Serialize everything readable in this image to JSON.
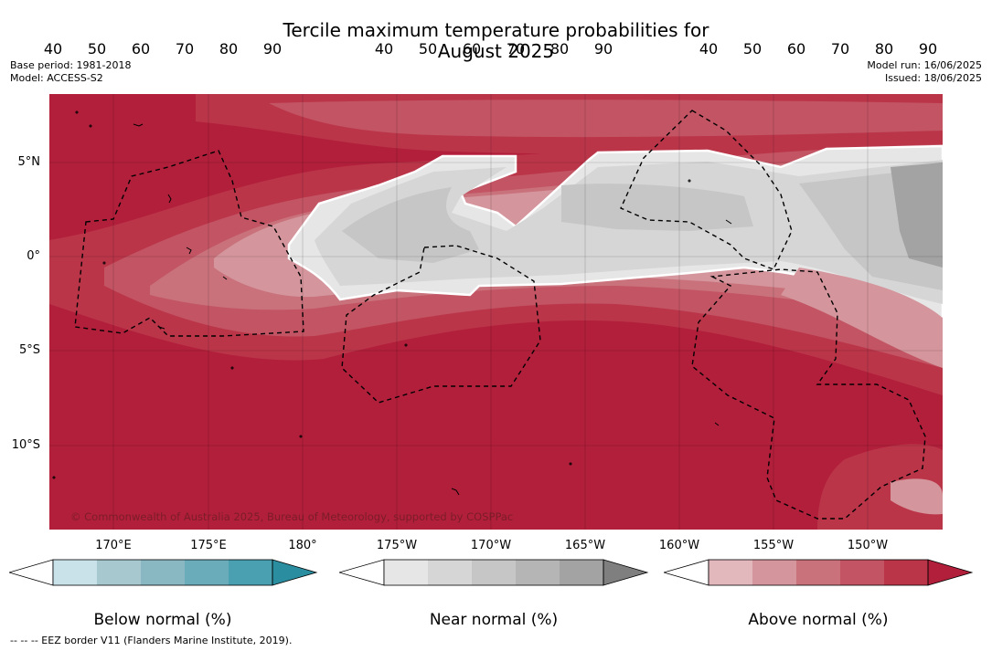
{
  "title_line1": "Tercile maximum temperature probabilities for",
  "title_line2": "August 2025",
  "base_period": "Base period: 1981-2018",
  "model": "Model: ACCESS-S2",
  "model_run": "Model run: 16/06/2025",
  "issued": "Issued: 18/06/2025",
  "credit": "© Commonwealth of Australia 2025, Bureau of Meteorology, supported by COSPPac",
  "footnote": "--  --  -- EEZ border V11 (Flanders Marine Institute, 2019).",
  "lat_labels": [
    "5°N",
    "0°",
    "5°S",
    "10°S"
  ],
  "lon_labels": [
    "170°E",
    "175°E",
    "180°",
    "175°W",
    "170°W",
    "165°W",
    "160°W",
    "155°W",
    "150°W"
  ],
  "colorbars": [
    {
      "name": "below",
      "label": "Below normal (%)",
      "ticks": [
        "40",
        "50",
        "60",
        "70",
        "80",
        "90"
      ],
      "colors": [
        "#ffffff",
        "#c9e1e8",
        "#a7c8cf",
        "#89b7c2",
        "#6aacb9",
        "#4aa0b0",
        "#2b8ea0"
      ]
    },
    {
      "name": "near",
      "label": "Near normal (%)",
      "ticks": [
        "40",
        "50",
        "60",
        "70",
        "80",
        "90"
      ],
      "colors": [
        "#ffffff",
        "#e6e6e6",
        "#d6d6d6",
        "#c6c6c6",
        "#b5b5b5",
        "#a3a3a3",
        "#7f7f7f"
      ]
    },
    {
      "name": "above",
      "label": "Above normal (%)",
      "ticks": [
        "40",
        "50",
        "60",
        "70",
        "80",
        "90"
      ],
      "colors": [
        "#ffffff",
        "#e2b8bd",
        "#d4959c",
        "#c9727c",
        "#c25463",
        "#bb3549",
        "#b21f3b"
      ]
    }
  ]
}
